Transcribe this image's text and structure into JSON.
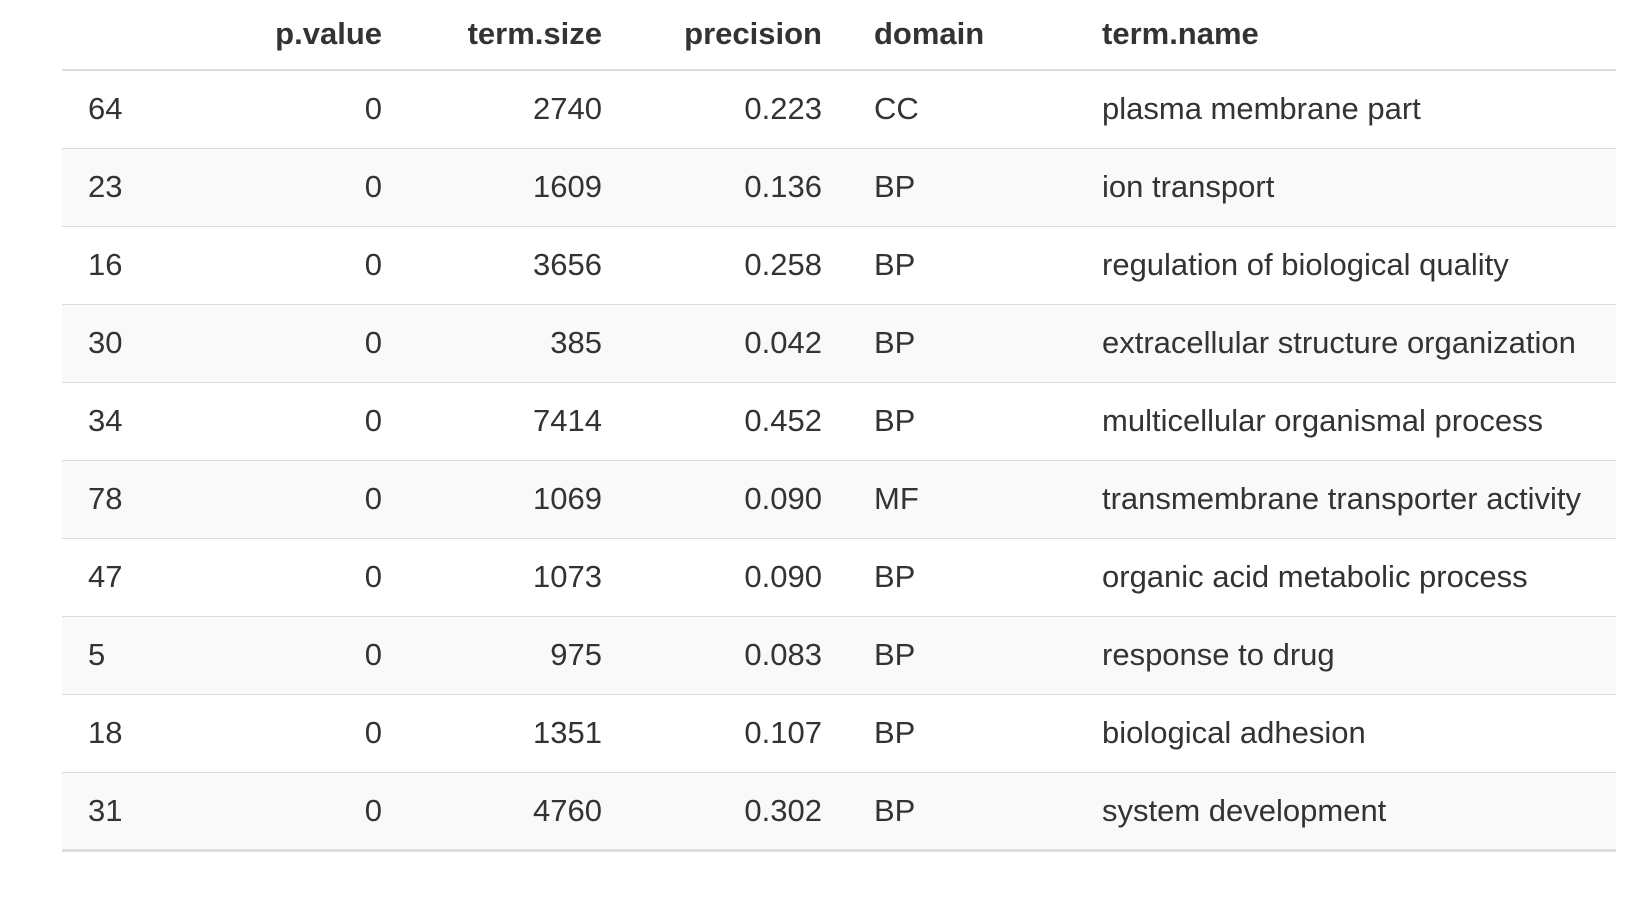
{
  "table": {
    "columns": [
      "",
      "p.value",
      "term.size",
      "precision",
      "domain",
      "term.name"
    ],
    "rows": [
      [
        "64",
        "0",
        "2740",
        "0.223",
        "CC",
        "plasma membrane part"
      ],
      [
        "23",
        "0",
        "1609",
        "0.136",
        "BP",
        "ion transport"
      ],
      [
        "16",
        "0",
        "3656",
        "0.258",
        "BP",
        "regulation of biological quality"
      ],
      [
        "30",
        "0",
        "385",
        "0.042",
        "BP",
        "extracellular structure organization"
      ],
      [
        "34",
        "0",
        "7414",
        "0.452",
        "BP",
        "multicellular organismal process"
      ],
      [
        "78",
        "0",
        "1069",
        "0.090",
        "MF",
        "transmembrane transporter activity"
      ],
      [
        "47",
        "0",
        "1073",
        "0.090",
        "BP",
        "organic acid metabolic process"
      ],
      [
        "5",
        "0",
        "975",
        "0.083",
        "BP",
        "response to drug"
      ],
      [
        "18",
        "0",
        "1351",
        "0.107",
        "BP",
        "biological adhesion"
      ],
      [
        "31",
        "0",
        "4760",
        "0.302",
        "BP",
        "system development"
      ]
    ]
  }
}
